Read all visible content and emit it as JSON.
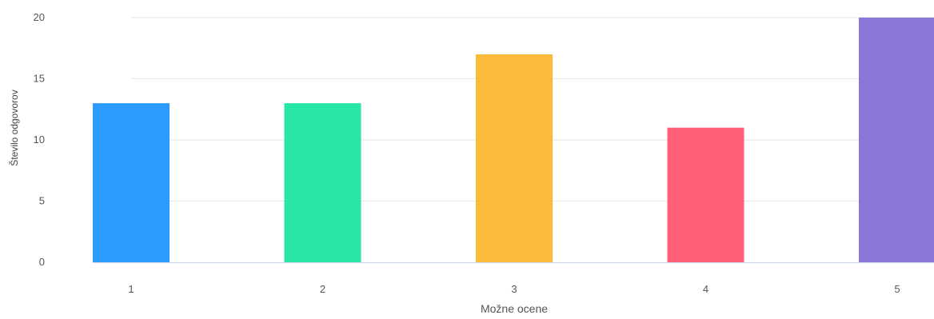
{
  "chart_data": {
    "type": "bar",
    "categories": [
      "1",
      "2",
      "3",
      "4",
      "5"
    ],
    "values": [
      13,
      13,
      17,
      11,
      20
    ],
    "colors": [
      "#2b9bff",
      "#28e6a6",
      "#fcba3b",
      "#ff6078",
      "#8b76d8"
    ],
    "xlabel": "Možne ocene",
    "ylabel": "Število odgovorov",
    "ylim": [
      0,
      20
    ],
    "yticks": [
      0,
      5,
      10,
      15,
      20
    ],
    "grid": true,
    "legend": "none"
  }
}
